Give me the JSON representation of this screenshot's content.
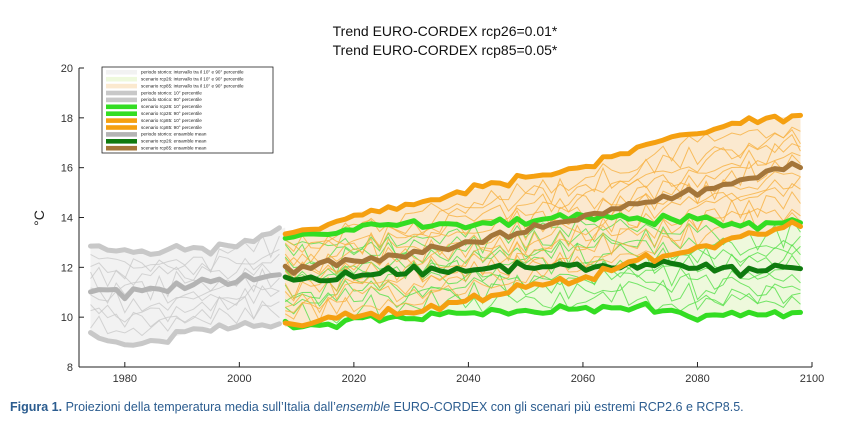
{
  "chart_data": {
    "type": "line",
    "title_lines": [
      "Trend EURO-CORDEX rcp26=0.01*",
      "Trend EURO-CORDEX rcp85=0.05*"
    ],
    "ylabel": "°C",
    "xlabel": "",
    "xlim": [
      1972,
      2100
    ],
    "ylim": [
      8,
      20
    ],
    "x_ticks": [
      1980,
      2000,
      2020,
      2040,
      2060,
      2080,
      2100
    ],
    "y_ticks": [
      8,
      10,
      12,
      14,
      16,
      18,
      20
    ],
    "grid": false,
    "legend_position": "top-left",
    "legend": [
      {
        "label": "periodo storico: intervallo tra il 10° e 90° percentile",
        "color": "#f2f2f2"
      },
      {
        "label": "scenario rcp26: intervallo tra il 10° e 90° percentile",
        "color": "#eef9dc"
      },
      {
        "label": "scenario rcp85: intervallo tra il 10° e 90° percentile",
        "color": "#fbe9cf"
      },
      {
        "label": "periodo storico: 10° percentile",
        "color": "#c8c8c8"
      },
      {
        "label": "periodo storico: 90° percentile",
        "color": "#c8c8c8"
      },
      {
        "label": "scenario rcp26: 10° percentile",
        "color": "#33dd22"
      },
      {
        "label": "scenario rcp26: 90° percentile",
        "color": "#33dd22"
      },
      {
        "label": "scenario rcp85: 10° percentile",
        "color": "#f5a010"
      },
      {
        "label": "scenario rcp85: 90° percentile",
        "color": "#f5a010"
      },
      {
        "label": "periodo storico: ensamble mean",
        "color": "#b4b4b4"
      },
      {
        "label": "scenario rcp26: ensamble mean",
        "color": "#0f7a0f"
      },
      {
        "label": "scenario rcp85: ensamble mean",
        "color": "#a4763a"
      }
    ],
    "series": [
      {
        "name": "periodo storico: 10° percentile",
        "color": "#c8c8c8",
        "x": [
          1974,
          1980,
          1985,
          1990,
          1995,
          2000,
          2005,
          2008
        ],
        "y": [
          9.4,
          8.9,
          9.0,
          9.3,
          9.6,
          9.7,
          9.7,
          9.8
        ]
      },
      {
        "name": "periodo storico: 90° percentile",
        "color": "#c8c8c8",
        "x": [
          1974,
          1980,
          1985,
          1990,
          1995,
          2000,
          2005,
          2008
        ],
        "y": [
          12.8,
          12.7,
          12.6,
          12.8,
          12.7,
          12.9,
          13.3,
          13.6
        ]
      },
      {
        "name": "periodo storico: ensamble mean",
        "color": "#b4b4b4",
        "x": [
          1974,
          1980,
          1985,
          1990,
          1995,
          2000,
          2005,
          2008
        ],
        "y": [
          11.1,
          10.9,
          11.1,
          11.2,
          11.4,
          11.5,
          11.7,
          11.8
        ]
      },
      {
        "name": "scenario rcp26: 10° percentile",
        "color": "#33dd22",
        "x": [
          2008,
          2015,
          2020,
          2030,
          2040,
          2050,
          2060,
          2070,
          2080,
          2090,
          2098
        ],
        "y": [
          9.7,
          9.7,
          9.9,
          10.0,
          10.2,
          10.2,
          10.3,
          10.4,
          10.0,
          10.1,
          10.2
        ]
      },
      {
        "name": "scenario rcp26: 90° percentile",
        "color": "#33dd22",
        "x": [
          2008,
          2015,
          2020,
          2030,
          2040,
          2050,
          2060,
          2070,
          2080,
          2090,
          2098
        ],
        "y": [
          13.2,
          13.3,
          13.6,
          13.7,
          13.7,
          13.9,
          14.0,
          13.9,
          13.9,
          13.6,
          13.9
        ]
      },
      {
        "name": "scenario rcp26: ensamble mean",
        "color": "#0f7a0f",
        "x": [
          2008,
          2015,
          2020,
          2030,
          2040,
          2050,
          2060,
          2070,
          2080,
          2090,
          2098
        ],
        "y": [
          11.5,
          11.5,
          11.7,
          11.9,
          11.9,
          12.0,
          12.0,
          12.1,
          12.0,
          11.8,
          12.1
        ]
      },
      {
        "name": "scenario rcp85: 10° percentile",
        "color": "#f5a010",
        "x": [
          2008,
          2015,
          2020,
          2030,
          2040,
          2050,
          2060,
          2070,
          2080,
          2090,
          2098
        ],
        "y": [
          9.6,
          9.9,
          10.1,
          10.2,
          10.7,
          11.2,
          11.5,
          12.3,
          12.8,
          13.3,
          13.7
        ]
      },
      {
        "name": "scenario rcp85: 90° percentile",
        "color": "#f5a010",
        "x": [
          2008,
          2015,
          2020,
          2030,
          2040,
          2050,
          2060,
          2070,
          2080,
          2090,
          2098
        ],
        "y": [
          13.4,
          13.6,
          14.2,
          14.5,
          15.1,
          15.6,
          16.0,
          16.8,
          17.4,
          17.9,
          18.1
        ]
      },
      {
        "name": "scenario rcp85: ensamble mean",
        "color": "#a4763a",
        "x": [
          2008,
          2015,
          2020,
          2030,
          2040,
          2050,
          2060,
          2070,
          2080,
          2090,
          2098
        ],
        "y": [
          11.9,
          12.1,
          12.2,
          12.5,
          13.0,
          13.5,
          14.0,
          14.6,
          15.1,
          15.6,
          16.1
        ]
      }
    ]
  },
  "caption": {
    "label": "Figura 1.",
    "text_before": " Proiezioni della temperatura media sull’Italia dall’",
    "italic": "ensemble",
    "text_after": " EURO-CORDEX con gli scenari più estremi RCP2.6 e RCP8.5."
  }
}
